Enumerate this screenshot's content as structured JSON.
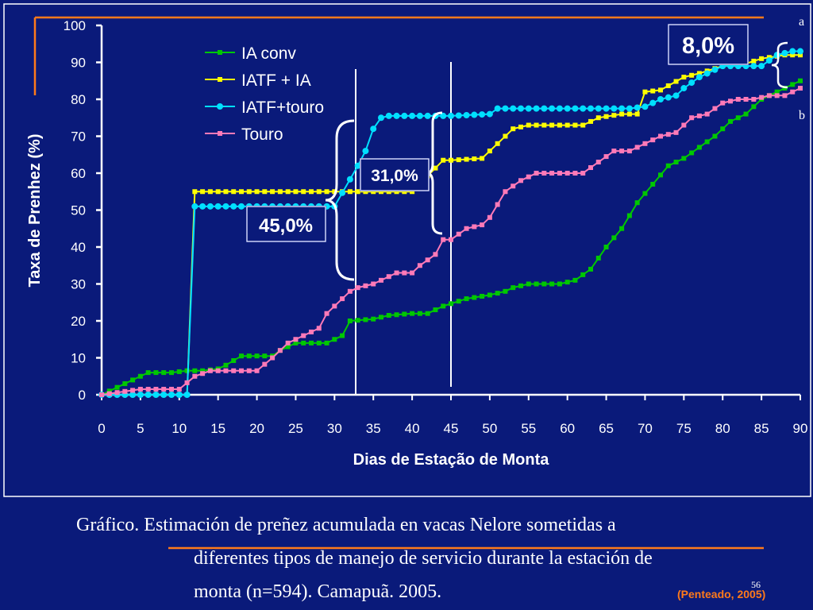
{
  "chart_data": {
    "type": "line",
    "xlabel": "Dias de Estação de Monta",
    "ylabel": "Taxa de  Prenhez (%)",
    "xlim": [
      0,
      90
    ],
    "ylim": [
      0,
      100
    ],
    "x_ticks": [
      "0",
      "5",
      "10",
      "15",
      "20",
      "25",
      "30",
      "35",
      "40",
      "45",
      "50",
      "55",
      "60",
      "65",
      "70",
      "75",
      "80",
      "85",
      "90"
    ],
    "y_ticks": [
      "0",
      "10",
      "20",
      "30",
      "40",
      "50",
      "60",
      "70",
      "80",
      "90",
      "100"
    ],
    "legend_position": "top-left",
    "series": [
      {
        "name": "IA conv",
        "color": "#00c800",
        "marker": "square",
        "x": [
          0,
          2,
          4,
          6,
          9,
          11,
          13,
          15,
          16,
          18,
          20,
          22,
          23,
          25,
          27,
          29,
          31,
          32,
          35,
          37,
          40,
          42,
          44,
          47,
          50,
          52,
          53,
          55,
          57,
          59,
          61,
          63,
          65,
          67,
          69,
          71,
          73,
          75,
          77,
          79,
          81,
          83,
          85,
          87,
          89,
          90
        ],
        "y": [
          0,
          2,
          4,
          6,
          6,
          6.5,
          6.5,
          7,
          8,
          10.5,
          10.5,
          10.5,
          12,
          14,
          14,
          14,
          16,
          20,
          20.5,
          21.5,
          22,
          22,
          24,
          26,
          27,
          28,
          29,
          30,
          30,
          30,
          31,
          34,
          40,
          45,
          52,
          57,
          62,
          64,
          67,
          70,
          74,
          76,
          80,
          82,
          84,
          85
        ]
      },
      {
        "name": "IATF + IA",
        "color": "#ffff00",
        "marker": "square",
        "x": [
          0,
          10,
          11,
          12,
          32,
          33,
          35,
          40,
          44,
          45,
          49,
          51,
          53,
          55,
          62,
          64,
          67,
          69,
          70,
          72,
          75,
          77,
          80,
          82,
          85,
          88,
          90
        ],
        "y": [
          0,
          0,
          0,
          55,
          55,
          55,
          55,
          55,
          63.5,
          63.5,
          64,
          68,
          72,
          73,
          73,
          75,
          76,
          76,
          82,
          82.5,
          86,
          87,
          89,
          89,
          91,
          92,
          92
        ]
      },
      {
        "name": "IATF+touro",
        "color": "#00e0ff",
        "marker": "circle",
        "x": [
          0,
          5,
          10,
          11,
          12,
          15,
          20,
          25,
          30,
          33,
          34,
          35,
          36,
          37,
          40,
          45,
          50,
          51,
          55,
          60,
          65,
          68,
          70,
          72,
          74,
          75,
          77,
          80,
          85,
          87,
          89,
          90
        ],
        "y": [
          0,
          0,
          0,
          0,
          51,
          51,
          51,
          51,
          51,
          62,
          66,
          72,
          75,
          75.5,
          75.5,
          75.5,
          76,
          77.5,
          77.5,
          77.5,
          77.5,
          77.5,
          78,
          80,
          81,
          83,
          86,
          89,
          89,
          92,
          93,
          93
        ]
      },
      {
        "name": "Touro",
        "color": "#ff7ab8",
        "marker": "square",
        "x": [
          0,
          5,
          10,
          12,
          14,
          20,
          22,
          24,
          26,
          28,
          29,
          30,
          32,
          33,
          35,
          36,
          38,
          40,
          41,
          43,
          44,
          45,
          47,
          49,
          50,
          52,
          54,
          56,
          58,
          60,
          62,
          64,
          66,
          68,
          70,
          72,
          74,
          76,
          78,
          80,
          82,
          84,
          86,
          88,
          90
        ],
        "y": [
          0,
          1.5,
          1.5,
          5,
          6.5,
          6.5,
          10,
          14,
          16,
          18,
          22,
          24,
          28,
          29,
          30,
          31,
          33,
          33,
          35,
          38,
          42,
          42,
          45,
          46,
          48,
          55,
          58,
          60,
          60,
          60,
          60,
          63,
          66,
          66,
          68,
          70,
          71,
          75,
          76,
          79,
          80,
          80,
          81,
          81,
          83
        ]
      }
    ],
    "annotations": [
      "45,0%",
      "31,0%",
      "8,0%",
      "a",
      "b"
    ]
  },
  "caption": {
    "line1": "Gráfico. Estimación de preñez acumulada en vacas Nelore sometidas a",
    "line2": "diferentes tipos de manejo de servicio durante la estación de",
    "line3": "monta (n=594). Camapuã. 2005."
  },
  "credit": "(Penteado, 2005)",
  "slide_number": "56",
  "colors": {
    "background": "#0a1a7a",
    "accent_line": "#ff7a1a",
    "box_border": "#3a4ab0"
  }
}
